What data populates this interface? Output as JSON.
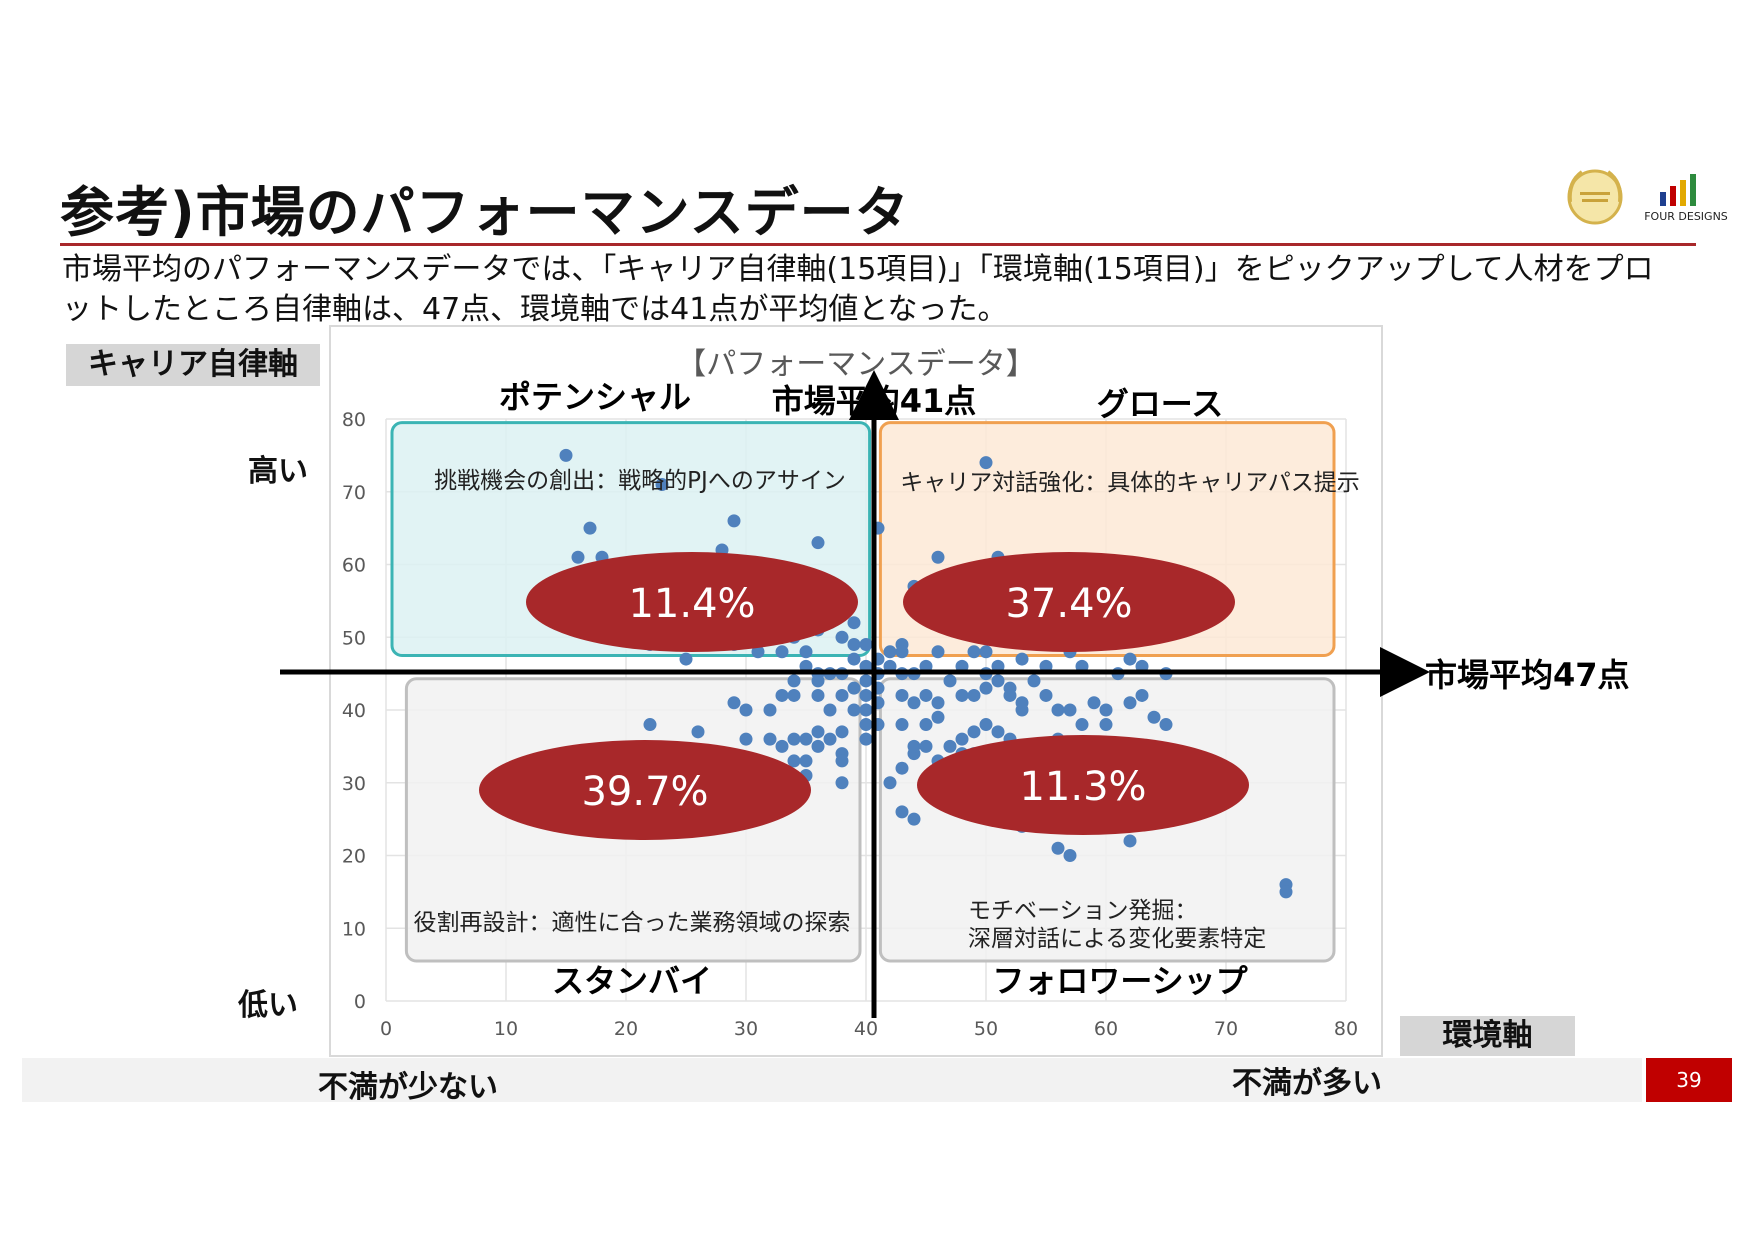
{
  "slide": {
    "title": "参考)市場のパフォーマンスデータ",
    "description": "市場平均のパフォーマンスデータでは、「キャリア自律軸(15項目)」「環境軸(15項目)」をピックアップして人材をプロットしたところ自律軸は、47点、環境軸では41点が平均値となった。",
    "page_number": "39",
    "logo_text": "FOUR DESIGNS",
    "accent_color": "#a8282a"
  },
  "axis_labels": {
    "y_box": "キャリア自律軸",
    "x_box": "環境軸",
    "y_high": "高い",
    "y_low": "低い",
    "x_low": "不満が少ない",
    "x_high": "不満が多い",
    "v_line": "市場平均41点",
    "h_line": "市場平均47点"
  },
  "quadrants": [
    {
      "name": "ポテンシャル",
      "note": "挑戦機会の創出：戦略的PJへのアサイン",
      "percent": "11.4%",
      "color": "#3bb4b4",
      "fill": "#dcf1f2"
    },
    {
      "name": "グロース",
      "note": "キャリア対話強化：具体的キャリアパス提示",
      "percent": "37.4%",
      "color": "#f0a050",
      "fill": "#fde9d6"
    },
    {
      "name": "スタンバイ",
      "note": "役割再設計：適性に合った業務領域の探索",
      "percent": "39.7%",
      "color": "#bfbfbf",
      "fill": "#f1f1f1"
    },
    {
      "name": "フォロワーシップ",
      "note_line1": "モチベーション発掘：",
      "note_line2": "深層対話による変化要素特定",
      "percent": "11.3%",
      "color": "#bfbfbf",
      "fill": "#f1f1f1"
    }
  ],
  "chart_data": {
    "type": "scatter",
    "title": "【パフォーマンスデータ】",
    "xlim": [
      0,
      80
    ],
    "ylim": [
      0,
      80
    ],
    "x_ticks": [
      0,
      10,
      20,
      30,
      40,
      50,
      60,
      70,
      80
    ],
    "y_ticks": [
      0,
      10,
      20,
      30,
      40,
      50,
      60,
      70,
      80
    ],
    "grid": true,
    "point_color": "#4f81bd",
    "points": [
      [
        15,
        75
      ],
      [
        23,
        71
      ],
      [
        17,
        65
      ],
      [
        29,
        66
      ],
      [
        36,
        63
      ],
      [
        16,
        61
      ],
      [
        18,
        61
      ],
      [
        28,
        62
      ],
      [
        20,
        52
      ],
      [
        22,
        49
      ],
      [
        25,
        47
      ],
      [
        27,
        49
      ],
      [
        29,
        49
      ],
      [
        30,
        52
      ],
      [
        32,
        50
      ],
      [
        33,
        48
      ],
      [
        34,
        50
      ],
      [
        35,
        48
      ],
      [
        36,
        51
      ],
      [
        37,
        52
      ],
      [
        38,
        54
      ],
      [
        38,
        50
      ],
      [
        39,
        49
      ],
      [
        39,
        52
      ],
      [
        39,
        47
      ],
      [
        40,
        49
      ],
      [
        40,
        46
      ],
      [
        40,
        44
      ],
      [
        41,
        43
      ],
      [
        41,
        45
      ],
      [
        39,
        43
      ],
      [
        38,
        42
      ],
      [
        37,
        45
      ],
      [
        36,
        44
      ],
      [
        35,
        46
      ],
      [
        34,
        44
      ],
      [
        33,
        42
      ],
      [
        32,
        40
      ],
      [
        31,
        48
      ],
      [
        36,
        42
      ],
      [
        37,
        40
      ],
      [
        36,
        37
      ],
      [
        35,
        36
      ],
      [
        34,
        36
      ],
      [
        33,
        35
      ],
      [
        32,
        36
      ],
      [
        35,
        33
      ],
      [
        36,
        35
      ],
      [
        38,
        37
      ],
      [
        38,
        34
      ],
      [
        40,
        36
      ],
      [
        39,
        40
      ],
      [
        40,
        42
      ],
      [
        37,
        36
      ],
      [
        38,
        30
      ],
      [
        38,
        33
      ],
      [
        35,
        31
      ],
      [
        34,
        30
      ],
      [
        34,
        33
      ],
      [
        22,
        38
      ],
      [
        26,
        37
      ],
      [
        29,
        41
      ],
      [
        30,
        40
      ],
      [
        30,
        36
      ],
      [
        34,
        42
      ],
      [
        36,
        45
      ],
      [
        38,
        45
      ],
      [
        40,
        40
      ],
      [
        40,
        38
      ],
      [
        41,
        41
      ],
      [
        41,
        38
      ],
      [
        41,
        65
      ],
      [
        46,
        61
      ],
      [
        44,
        57
      ],
      [
        45,
        55
      ],
      [
        51,
        61
      ],
      [
        52,
        55
      ],
      [
        53,
        53
      ],
      [
        54,
        51
      ],
      [
        43,
        49
      ],
      [
        43,
        48
      ],
      [
        42,
        48
      ],
      [
        41,
        47
      ],
      [
        42,
        46
      ],
      [
        43,
        45
      ],
      [
        44,
        45
      ],
      [
        45,
        46
      ],
      [
        46,
        48
      ],
      [
        47,
        44
      ],
      [
        48,
        46
      ],
      [
        49,
        48
      ],
      [
        50,
        48
      ],
      [
        50,
        45
      ],
      [
        51,
        44
      ],
      [
        52,
        43
      ],
      [
        51,
        46
      ],
      [
        53,
        47
      ],
      [
        54,
        44
      ],
      [
        57,
        48
      ],
      [
        55,
        46
      ],
      [
        58,
        46
      ],
      [
        62,
        47
      ],
      [
        63,
        46
      ],
      [
        65,
        45
      ],
      [
        61,
        45
      ],
      [
        43,
        42
      ],
      [
        44,
        41
      ],
      [
        45,
        42
      ],
      [
        46,
        41
      ],
      [
        48,
        42
      ],
      [
        49,
        42
      ],
      [
        50,
        43
      ],
      [
        52,
        42
      ],
      [
        53,
        40
      ],
      [
        53,
        41
      ],
      [
        55,
        42
      ],
      [
        56,
        40
      ],
      [
        57,
        40
      ],
      [
        59,
        41
      ],
      [
        60,
        40
      ],
      [
        62,
        41
      ],
      [
        64,
        39
      ],
      [
        65,
        38
      ],
      [
        63,
        42
      ],
      [
        58,
        38
      ],
      [
        60,
        38
      ],
      [
        56,
        36
      ],
      [
        54,
        35
      ],
      [
        52,
        36
      ],
      [
        51,
        37
      ],
      [
        50,
        38
      ],
      [
        49,
        37
      ],
      [
        48,
        36
      ],
      [
        47,
        35
      ],
      [
        48,
        34
      ],
      [
        46,
        33
      ],
      [
        45,
        35
      ],
      [
        44,
        34
      ],
      [
        45,
        38
      ],
      [
        46,
        39
      ],
      [
        43,
        38
      ],
      [
        44,
        35
      ],
      [
        43,
        32
      ],
      [
        42,
        30
      ],
      [
        43,
        26
      ],
      [
        44,
        25
      ],
      [
        48,
        30
      ],
      [
        49,
        34
      ],
      [
        53,
        24
      ],
      [
        61,
        30
      ],
      [
        62,
        22
      ],
      [
        58,
        31
      ],
      [
        57,
        33
      ],
      [
        60,
        26
      ],
      [
        55,
        26
      ],
      [
        56,
        21
      ],
      [
        57,
        20
      ],
      [
        75,
        16
      ],
      [
        75,
        15
      ],
      [
        50,
        74
      ],
      [
        49,
        58
      ],
      [
        48,
        56
      ]
    ]
  }
}
